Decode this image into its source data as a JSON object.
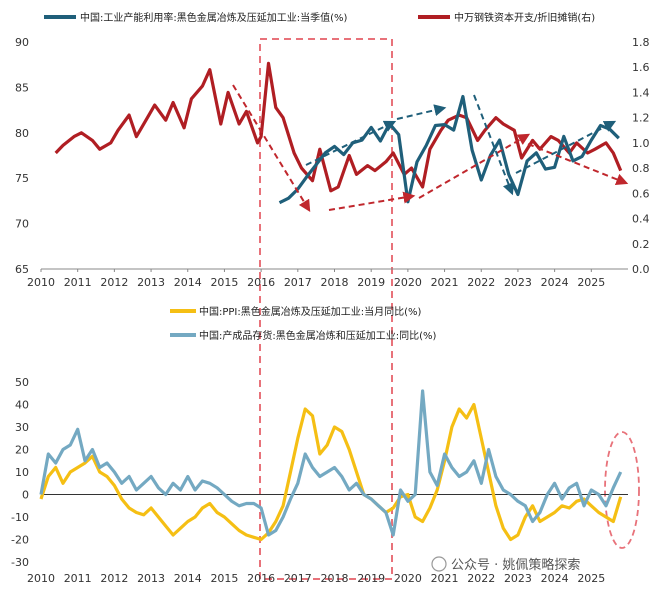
{
  "watermark": "公众号 · 姚佩策略探索",
  "colors": {
    "utilization": "#1f5f7a",
    "capex": "#b01e23",
    "ppi": "#f5bf14",
    "inventory": "#74a9c2",
    "annotation_red": "#c0272d",
    "annotation_blue": "#1f5f7a",
    "highlight": "#e8727a"
  },
  "chart_data": [
    {
      "type": "line",
      "series": [
        {
          "name": "中国:工业产能利用率:黑色金属冶炼及压延加工业:当季值(%)",
          "axis": "left",
          "x": [
            2016.5,
            2016.75,
            2017.0,
            2017.25,
            2017.5,
            2017.75,
            2018.0,
            2018.25,
            2018.5,
            2018.75,
            2019.0,
            2019.25,
            2019.5,
            2019.75,
            2020.0,
            2020.25,
            2020.5,
            2020.75,
            2021.0,
            2021.25,
            2021.5,
            2021.75,
            2022.0,
            2022.25,
            2022.5,
            2022.75,
            2023.0,
            2023.25,
            2023.5,
            2023.75,
            2024.0,
            2024.25,
            2024.5,
            2024.75,
            2025.0,
            2025.25,
            2025.5,
            2025.75
          ],
          "values": [
            72.3,
            72.8,
            73.8,
            75.2,
            76.5,
            77.8,
            78.5,
            77.6,
            78.9,
            79.2,
            80.6,
            79.1,
            81.0,
            79.8,
            72.4,
            76.8,
            78.6,
            80.8,
            80.9,
            80.3,
            84.0,
            78.1,
            74.8,
            77.5,
            79.2,
            75.4,
            73.2,
            76.9,
            77.8,
            76.0,
            76.2,
            79.6,
            76.9,
            77.4,
            79.2,
            80.8,
            80.4,
            79.4
          ]
        },
        {
          "name": "中万钢铁资本开支/折旧摊销(右)",
          "axis": "right",
          "x": [
            2010.4,
            2010.6,
            2010.9,
            2011.1,
            2011.4,
            2011.6,
            2011.9,
            2012.1,
            2012.4,
            2012.6,
            2012.9,
            2013.1,
            2013.4,
            2013.6,
            2013.9,
            2014.1,
            2014.4,
            2014.6,
            2014.9,
            2015.1,
            2015.4,
            2015.6,
            2015.9,
            2016.0,
            2016.2,
            2016.4,
            2016.6,
            2016.9,
            2017.1,
            2017.4,
            2017.6,
            2017.9,
            2018.1,
            2018.4,
            2018.6,
            2018.9,
            2019.1,
            2019.4,
            2019.6,
            2019.9,
            2020.1,
            2020.4,
            2020.6,
            2020.9,
            2021.1,
            2021.4,
            2021.6,
            2021.9,
            2022.1,
            2022.4,
            2022.6,
            2022.9,
            2023.1,
            2023.4,
            2023.6,
            2023.9,
            2024.1,
            2024.4,
            2024.6,
            2024.9,
            2025.1,
            2025.4,
            2025.6,
            2025.8
          ],
          "values": [
            0.92,
            0.98,
            1.05,
            1.08,
            1.02,
            0.95,
            1.0,
            1.1,
            1.22,
            1.05,
            1.2,
            1.3,
            1.18,
            1.32,
            1.12,
            1.35,
            1.45,
            1.58,
            1.15,
            1.4,
            1.15,
            1.25,
            1.0,
            1.05,
            1.63,
            1.28,
            1.2,
            0.92,
            0.8,
            0.7,
            0.95,
            0.62,
            0.65,
            0.9,
            0.75,
            0.82,
            0.78,
            0.85,
            0.92,
            0.75,
            0.8,
            0.65,
            0.95,
            1.1,
            1.18,
            1.22,
            1.2,
            1.02,
            1.1,
            1.2,
            1.15,
            1.1,
            0.88,
            1.02,
            0.95,
            1.05,
            1.02,
            0.92,
            1.0,
            0.92,
            0.95,
            1.0,
            0.92,
            0.78
          ]
        }
      ],
      "x_ticks": [
        "2010",
        "2011",
        "2012",
        "2013",
        "2014",
        "2015",
        "2016",
        "2017",
        "2018",
        "2019",
        "2020",
        "2021",
        "2022",
        "2023",
        "2024",
        "2025"
      ],
      "y_left_ticks": [
        "65",
        "70",
        "75",
        "80",
        "85",
        "90"
      ],
      "y_right_ticks": [
        "0.0",
        "0.2",
        "0.4",
        "0.6",
        "0.8",
        "1.0",
        "1.2",
        "1.4",
        "1.6",
        "1.8"
      ],
      "y_left_range": [
        65,
        90
      ],
      "y_right_range": [
        0,
        1.8
      ],
      "x_range": [
        2010,
        2026
      ],
      "legend_position": "top"
    },
    {
      "type": "line",
      "series": [
        {
          "name": "中国:PPI:黑色金属冶炼及压延加工业:当月同比(%)",
          "x": [
            2010.0,
            2010.2,
            2010.4,
            2010.6,
            2010.8,
            2011.0,
            2011.2,
            2011.4,
            2011.6,
            2011.8,
            2012.0,
            2012.2,
            2012.4,
            2012.6,
            2012.8,
            2013.0,
            2013.2,
            2013.4,
            2013.6,
            2013.8,
            2014.0,
            2014.2,
            2014.4,
            2014.6,
            2014.8,
            2015.0,
            2015.2,
            2015.4,
            2015.6,
            2015.8,
            2016.0,
            2016.2,
            2016.4,
            2016.6,
            2016.8,
            2017.0,
            2017.2,
            2017.4,
            2017.6,
            2017.8,
            2018.0,
            2018.2,
            2018.4,
            2018.6,
            2018.8,
            2019.0,
            2019.2,
            2019.4,
            2019.6,
            2019.8,
            2020.0,
            2020.2,
            2020.4,
            2020.6,
            2020.8,
            2021.0,
            2021.2,
            2021.4,
            2021.6,
            2021.8,
            2022.0,
            2022.2,
            2022.4,
            2022.6,
            2022.8,
            2023.0,
            2023.2,
            2023.4,
            2023.6,
            2023.8,
            2024.0,
            2024.2,
            2024.4,
            2024.6,
            2024.8,
            2025.0,
            2025.2,
            2025.4,
            2025.6,
            2025.8
          ],
          "values": [
            -2,
            8,
            12,
            5,
            10,
            12,
            14,
            17,
            10,
            8,
            4,
            -2,
            -6,
            -8,
            -9,
            -6,
            -10,
            -14,
            -18,
            -15,
            -12,
            -10,
            -6,
            -4,
            -8,
            -10,
            -13,
            -16,
            -18,
            -19,
            -20,
            -17,
            -12,
            -5,
            10,
            25,
            38,
            35,
            18,
            22,
            30,
            28,
            20,
            10,
            0,
            -2,
            -5,
            -8,
            -6,
            -1,
            0,
            -10,
            -12,
            -6,
            2,
            15,
            30,
            38,
            34,
            40,
            25,
            10,
            -5,
            -15,
            -20,
            -18,
            -10,
            -5,
            -12,
            -10,
            -8,
            -5,
            -6,
            -3,
            -2,
            -5,
            -8,
            -10,
            -12,
            -1
          ]
        },
        {
          "name": "中国:产成品存货:黑色金属冶炼和压延加工业:同比(%)",
          "x": [
            2010.0,
            2010.2,
            2010.4,
            2010.6,
            2010.8,
            2011.0,
            2011.2,
            2011.4,
            2011.6,
            2011.8,
            2012.0,
            2012.2,
            2012.4,
            2012.6,
            2012.8,
            2013.0,
            2013.2,
            2013.4,
            2013.6,
            2013.8,
            2014.0,
            2014.2,
            2014.4,
            2014.6,
            2014.8,
            2015.0,
            2015.2,
            2015.4,
            2015.6,
            2015.8,
            2016.0,
            2016.2,
            2016.4,
            2016.6,
            2016.8,
            2017.0,
            2017.2,
            2017.4,
            2017.6,
            2017.8,
            2018.0,
            2018.2,
            2018.4,
            2018.6,
            2018.8,
            2019.0,
            2019.2,
            2019.4,
            2019.6,
            2019.8,
            2020.0,
            2020.2,
            2020.4,
            2020.6,
            2020.8,
            2021.0,
            2021.2,
            2021.4,
            2021.6,
            2021.8,
            2022.0,
            2022.2,
            2022.4,
            2022.6,
            2022.8,
            2023.0,
            2023.2,
            2023.4,
            2023.6,
            2023.8,
            2024.0,
            2024.2,
            2024.4,
            2024.6,
            2024.8,
            2025.0,
            2025.2,
            2025.4,
            2025.6,
            2025.8
          ],
          "values": [
            0,
            18,
            14,
            20,
            22,
            29,
            15,
            20,
            12,
            14,
            10,
            5,
            8,
            2,
            5,
            8,
            3,
            0,
            5,
            2,
            8,
            2,
            6,
            5,
            3,
            0,
            -3,
            -5,
            -4,
            -4,
            -6,
            -18,
            -16,
            -10,
            -2,
            5,
            18,
            12,
            8,
            10,
            12,
            8,
            2,
            5,
            0,
            -2,
            -5,
            -8,
            -18,
            2,
            -3,
            0,
            46,
            10,
            4,
            18,
            12,
            8,
            10,
            15,
            5,
            20,
            8,
            2,
            0,
            -3,
            -5,
            -12,
            -8,
            0,
            5,
            -2,
            3,
            5,
            -5,
            2,
            0,
            -5,
            3,
            10
          ]
        }
      ],
      "x_ticks": [
        "2010",
        "2011",
        "2012",
        "2013",
        "2014",
        "2015",
        "2016",
        "2017",
        "2018",
        "2019",
        "2020",
        "2021",
        "2022",
        "2023",
        "2024",
        "2025"
      ],
      "y_ticks": [
        "-30",
        "-20",
        "-10",
        "0",
        "10",
        "20",
        "30",
        "40",
        "50"
      ],
      "y_range": [
        -30,
        50
      ],
      "x_range": [
        2010,
        2026
      ],
      "legend_position": "top"
    }
  ]
}
